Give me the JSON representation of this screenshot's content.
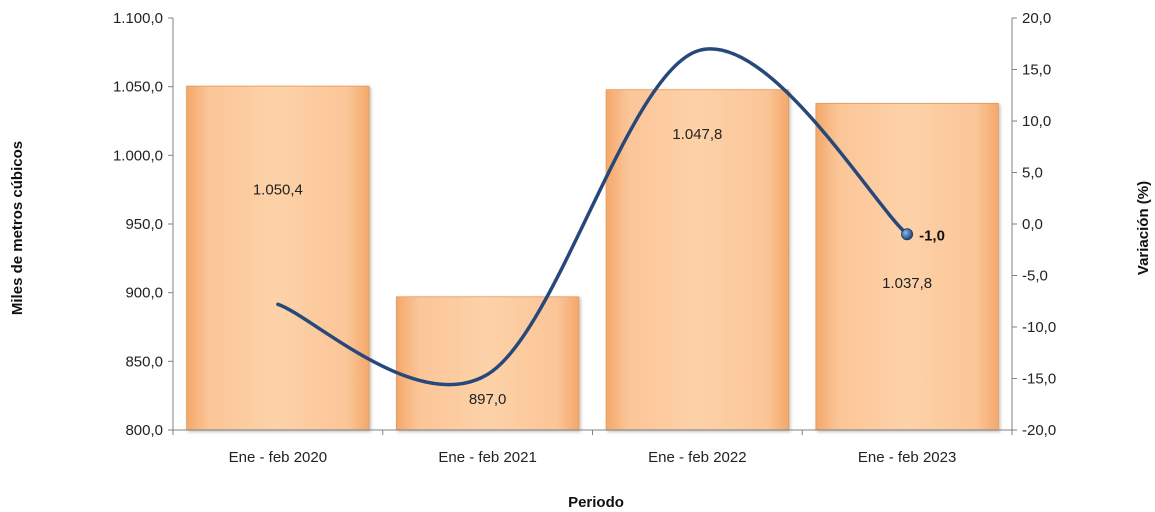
{
  "chart_data": {
    "type": "bar",
    "categories": [
      "Ene - feb 2020",
      "Ene - feb 2021",
      "Ene - feb 2022",
      "Ene - feb 2023"
    ],
    "series": [
      {
        "name": "",
        "kind": "bar",
        "axis": "left",
        "values": [
          1050.4,
          897.0,
          1047.8,
          1037.8
        ],
        "labels": [
          "1.050,4",
          "897,0",
          "1.047,8",
          "1.037,8"
        ],
        "color": "#F9C088"
      },
      {
        "name": "",
        "kind": "line",
        "axis": "right",
        "values": [
          -7.8,
          -14.6,
          16.8,
          -1.0
        ],
        "color": "#27497A"
      }
    ],
    "highlight_point": {
      "category": "Ene - feb 2023",
      "label": "-1,0"
    },
    "xlabel": "Periodo",
    "ylabel": "Miles de metros cúbicos",
    "y2label": "Variación (%)",
    "ylim": [
      800,
      1100
    ],
    "y2lim": [
      -20,
      20
    ],
    "yticks": [
      "800,0",
      "850,0",
      "900,0",
      "950,0",
      "1.000,0",
      "1.050,0",
      "1.100,0"
    ],
    "y2ticks": [
      "-20,0",
      "-15,0",
      "-10,0",
      "-5,0",
      "0,0",
      "5,0",
      "10,0",
      "15,0",
      "20,0"
    ],
    "grid": false,
    "legend": "none"
  }
}
